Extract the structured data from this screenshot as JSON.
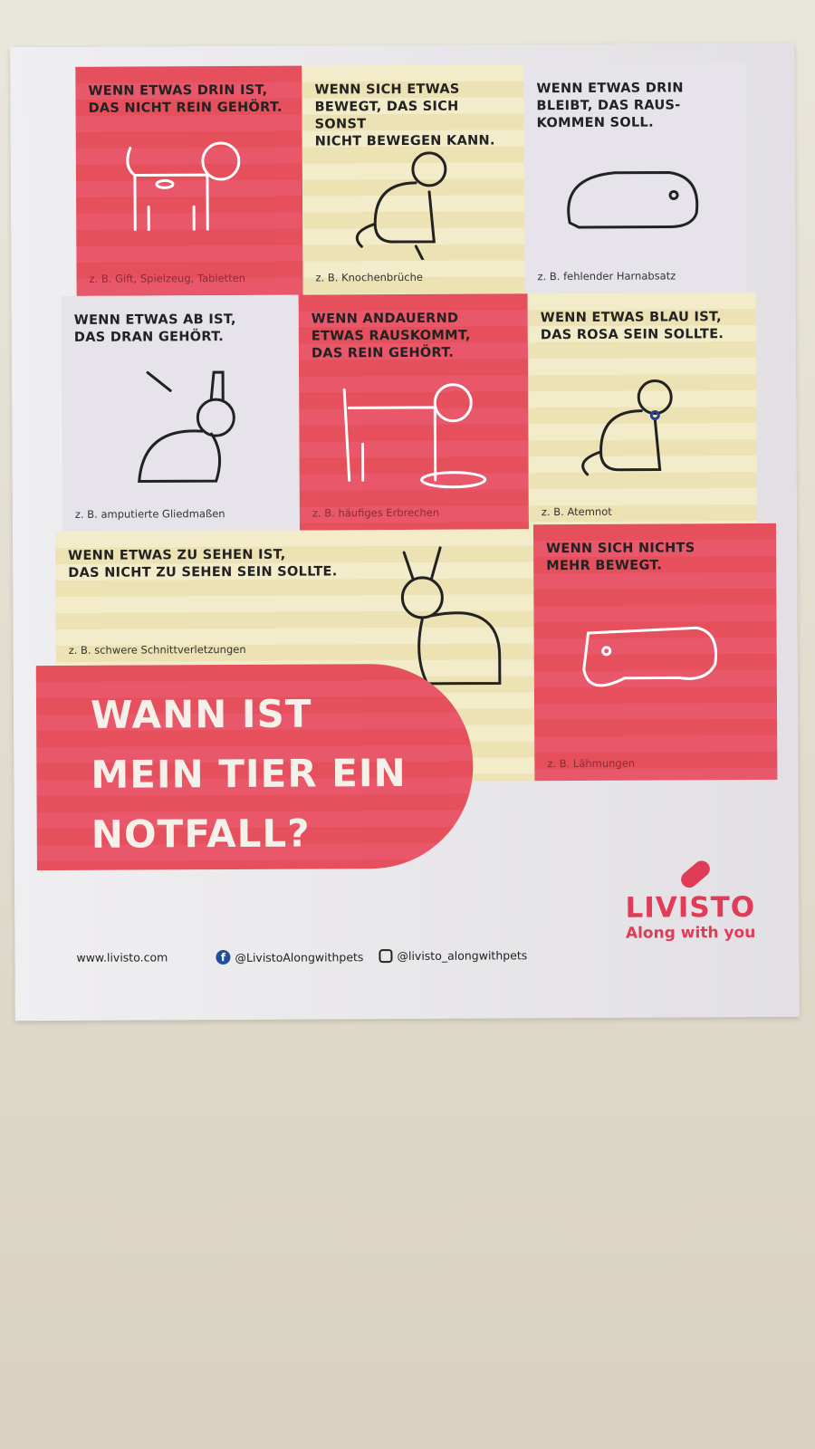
{
  "cards": [
    {
      "heading": "WENN ETWAS DRIN IST,\nDAS NICHT REIN GEHÖRT.",
      "example": "z. B. Gift, Spielzeug, Tabletten",
      "icon": "dog-swallowed-pills-icon"
    },
    {
      "heading": "WENN SICH ETWAS\nBEWEGT, DAS SICH SONST\nNICHT BEWEGEN KANN.",
      "example": "z. B. Knochenbrüche",
      "icon": "cat-broken-tail-icon"
    },
    {
      "heading": "WENN ETWAS DRIN\nBLEIBT, DAS RAUS-\nKOMMEN SOLL.",
      "example": "z. B. fehlender Harnabsatz",
      "icon": "guinea-pig-icon"
    },
    {
      "heading": "WENN ETWAS AB IST,\nDAS DRAN GEHÖRT.",
      "example": "z. B. amputierte Gliedmaßen",
      "icon": "rabbit-amputated-ear-icon"
    },
    {
      "heading": "WENN ANDAUERND\nETWAS RAUSKOMMT,\nDAS REIN GEHÖRT.",
      "example": "z. B. häufiges Erbrechen",
      "icon": "dog-vomiting-icon"
    },
    {
      "heading": "WENN ETWAS BLAU IST,\nDAS ROSA SEIN SOLLTE.",
      "example": "z. B. Atemnot",
      "icon": "cat-blue-tongue-icon"
    },
    {
      "heading": "WENN ETWAS ZU SEHEN IST,\nDAS NICHT ZU SEHEN SEIN SOLLTE.",
      "example": "z. B. schwere Schnittverletzungen",
      "icon": "rabbit-wound-icon"
    },
    {
      "heading": "WENN SICH NICHTS\nMEHR BEWEGT.",
      "example": "z. B. Lähmungen",
      "icon": "guinea-pig-lying-icon"
    }
  ],
  "title": "WANN IST\nMEIN TIER EIN\nNOTFALL?",
  "footer": {
    "website": "www.livisto.com",
    "facebook": "@LivistoAlongwithpets",
    "instagram": "@livisto_alongwithpets"
  },
  "brand": {
    "name": "LIVISTO",
    "tagline": "Along with you"
  },
  "colors": {
    "red": "#e64f5c",
    "yellow": "#f2ecca",
    "brand": "#e03b57"
  }
}
